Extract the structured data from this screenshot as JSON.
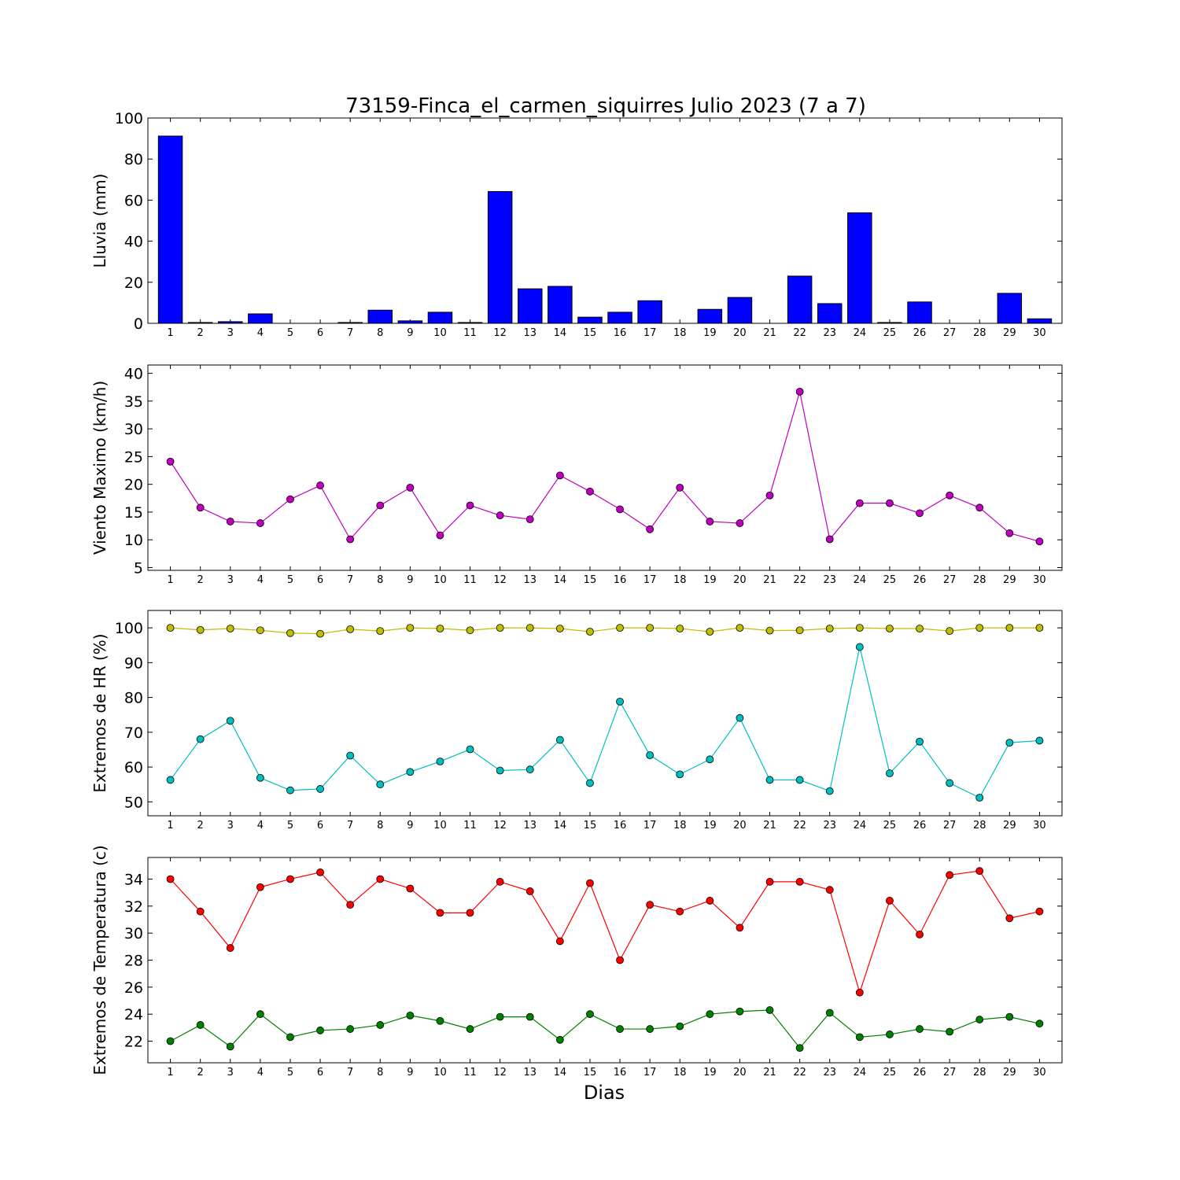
{
  "title": "73159-Finca_el_carmen_siquirres Julio 2023  (7 a 7)",
  "xlabel": "Dias",
  "chart_data": [
    {
      "type": "bar",
      "ylabel": "Lluvia (mm)",
      "ylim": [
        0,
        100
      ],
      "yticks": [
        0,
        20,
        40,
        60,
        80,
        100
      ],
      "x": [
        1,
        2,
        3,
        4,
        5,
        6,
        7,
        8,
        9,
        10,
        11,
        12,
        13,
        14,
        15,
        16,
        17,
        18,
        19,
        20,
        21,
        22,
        23,
        24,
        25,
        26,
        27,
        28,
        29,
        30
      ],
      "series": [
        {
          "color": "#0000ff",
          "values": [
            91.2,
            0.4,
            0.8,
            4.6,
            0,
            0,
            0.4,
            6.4,
            1.2,
            5.4,
            0.4,
            64.2,
            16.8,
            18.0,
            3.0,
            5.4,
            11.0,
            0,
            6.8,
            12.6,
            0,
            23.0,
            9.6,
            53.8,
            0.4,
            10.4,
            0,
            0,
            14.6,
            2.2
          ]
        }
      ]
    },
    {
      "type": "line",
      "ylabel": "Viento Maximo (km/h)",
      "ylim": [
        4.5,
        41.5
      ],
      "yticks": [
        5,
        10,
        15,
        20,
        25,
        30,
        35,
        40
      ],
      "x": [
        1,
        2,
        3,
        4,
        5,
        6,
        7,
        8,
        9,
        10,
        11,
        12,
        13,
        14,
        15,
        16,
        17,
        18,
        19,
        20,
        21,
        22,
        23,
        24,
        25,
        26,
        27,
        28,
        29,
        30
      ],
      "series": [
        {
          "color": "#bf00bf",
          "values": [
            24.1,
            15.8,
            13.3,
            13.0,
            17.3,
            19.8,
            10.1,
            16.2,
            19.4,
            10.8,
            16.2,
            14.4,
            13.7,
            21.6,
            18.7,
            15.5,
            11.9,
            19.4,
            13.3,
            13.0,
            18.0,
            36.7,
            10.1,
            16.6,
            16.6,
            14.8,
            18.0,
            15.8,
            11.2,
            9.7
          ]
        }
      ]
    },
    {
      "type": "line",
      "ylabel": "Extremos de HR (%)",
      "ylim": [
        46,
        105
      ],
      "yticks": [
        50,
        60,
        70,
        80,
        90,
        100
      ],
      "x": [
        1,
        2,
        3,
        4,
        5,
        6,
        7,
        8,
        9,
        10,
        11,
        12,
        13,
        14,
        15,
        16,
        17,
        18,
        19,
        20,
        21,
        22,
        23,
        24,
        25,
        26,
        27,
        28,
        29,
        30
      ],
      "series": [
        {
          "color": "#bfbf00",
          "values": [
            100,
            99.4,
            99.8,
            99.3,
            98.5,
            98.3,
            99.6,
            99.1,
            100,
            99.8,
            99.3,
            100,
            100,
            99.8,
            98.9,
            100,
            100,
            99.8,
            98.9,
            100,
            99.2,
            99.3,
            99.8,
            100,
            99.8,
            99.8,
            99.1,
            100,
            100,
            100
          ]
        },
        {
          "color": "#00bfbf",
          "values": [
            56.3,
            68.0,
            73.3,
            56.9,
            53.3,
            53.7,
            63.3,
            55.0,
            58.6,
            61.6,
            65.1,
            59.0,
            59.3,
            67.8,
            55.4,
            78.8,
            63.4,
            57.9,
            62.2,
            74.1,
            56.3,
            56.3,
            53.1,
            94.5,
            58.2,
            67.3,
            55.4,
            51.2,
            67.0,
            67.6
          ]
        }
      ]
    },
    {
      "type": "line",
      "ylabel": "Extremos de Temperatura (c)",
      "ylim": [
        20.4,
        35.6
      ],
      "yticks": [
        22,
        24,
        26,
        28,
        30,
        32,
        34
      ],
      "x": [
        1,
        2,
        3,
        4,
        5,
        6,
        7,
        8,
        9,
        10,
        11,
        12,
        13,
        14,
        15,
        16,
        17,
        18,
        19,
        20,
        21,
        22,
        23,
        24,
        25,
        26,
        27,
        28,
        29,
        30
      ],
      "series": [
        {
          "color": "#ff0000",
          "values": [
            34.0,
            31.6,
            28.9,
            33.4,
            34.0,
            34.5,
            32.1,
            34.0,
            33.3,
            31.5,
            31.5,
            33.8,
            33.1,
            29.4,
            33.7,
            28.0,
            32.1,
            31.6,
            32.4,
            30.4,
            33.8,
            33.8,
            33.2,
            25.6,
            32.4,
            29.9,
            34.3,
            34.6,
            31.1,
            31.6
          ]
        },
        {
          "color": "#008000",
          "values": [
            22.0,
            23.2,
            21.6,
            24.0,
            22.3,
            22.8,
            22.9,
            23.2,
            23.9,
            23.5,
            22.9,
            23.8,
            23.8,
            22.1,
            24.0,
            22.9,
            22.9,
            23.1,
            24.0,
            24.2,
            24.3,
            21.5,
            24.1,
            22.3,
            22.5,
            22.9,
            22.7,
            23.6,
            23.8,
            23.3
          ]
        }
      ]
    }
  ]
}
